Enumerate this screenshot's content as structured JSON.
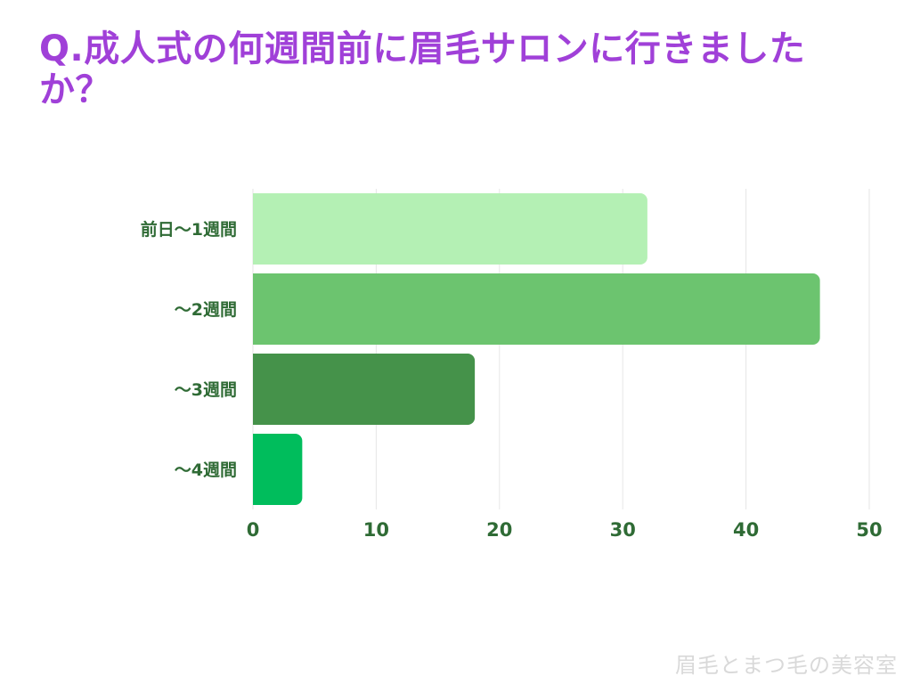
{
  "title": "Q.成人式の何週間前に眉毛サロンに行きましたか？",
  "watermark": "眉毛とまつ毛の美容室",
  "chart_data": {
    "type": "bar",
    "orientation": "horizontal",
    "title": "Q.成人式の何週間前に眉毛サロンに行きましたか？",
    "xlabel": "",
    "ylabel": "",
    "categories": [
      "前日〜1週間",
      "〜2週間",
      "〜3週間",
      "〜4週間"
    ],
    "values": [
      32,
      46,
      18,
      4
    ],
    "colors": [
      "#b4f0b4",
      "#6cc46f",
      "#45924a",
      "#00bd5c"
    ],
    "xlim": [
      0,
      50
    ],
    "xticks": [
      0,
      10,
      20,
      30,
      40,
      50
    ],
    "grid": true,
    "legend": "none"
  }
}
